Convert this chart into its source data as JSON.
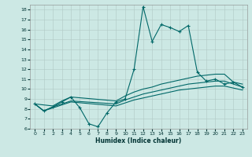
{
  "xlabel": "Humidex (Indice chaleur)",
  "bg_color": "#cce8e4",
  "grid_color": "#b0c8c4",
  "line_color": "#006868",
  "xlim": [
    -0.5,
    23.5
  ],
  "ylim": [
    6,
    18.5
  ],
  "xticks": [
    0,
    1,
    2,
    3,
    4,
    5,
    6,
    7,
    8,
    9,
    10,
    11,
    12,
    13,
    14,
    15,
    16,
    17,
    18,
    19,
    20,
    21,
    22,
    23
  ],
  "yticks": [
    6,
    7,
    8,
    9,
    10,
    11,
    12,
    13,
    14,
    15,
    16,
    17,
    18
  ],
  "line1_x": [
    0,
    1,
    2,
    3,
    4,
    5,
    6,
    7,
    8,
    9,
    10,
    11,
    12,
    13,
    14,
    15,
    16,
    17,
    18,
    19,
    20,
    21,
    22,
    23
  ],
  "line1_y": [
    8.5,
    7.8,
    8.2,
    8.7,
    9.2,
    8.1,
    6.5,
    6.2,
    7.6,
    8.7,
    9.0,
    12.0,
    18.3,
    14.8,
    16.5,
    16.2,
    15.8,
    16.4,
    11.7,
    10.8,
    11.0,
    10.5,
    10.7,
    10.2
  ],
  "line2_x": [
    0,
    2,
    3,
    4,
    9,
    10,
    11,
    12,
    13,
    14,
    15,
    16,
    17,
    18,
    19,
    20,
    21,
    22,
    23
  ],
  "line2_y": [
    8.5,
    8.3,
    8.8,
    9.2,
    8.8,
    9.3,
    9.7,
    10.0,
    10.2,
    10.5,
    10.7,
    10.9,
    11.1,
    11.3,
    11.4,
    11.5,
    11.5,
    10.7,
    10.5
  ],
  "line3_x": [
    0,
    1,
    2,
    3,
    4,
    9,
    10,
    11,
    12,
    13,
    14,
    15,
    16,
    17,
    18,
    19,
    20,
    21,
    22,
    23
  ],
  "line3_y": [
    8.5,
    7.8,
    8.2,
    8.5,
    8.8,
    8.5,
    8.9,
    9.2,
    9.5,
    9.7,
    9.9,
    10.1,
    10.3,
    10.5,
    10.6,
    10.7,
    10.8,
    10.8,
    10.5,
    10.2
  ],
  "line4_x": [
    0,
    1,
    2,
    3,
    4,
    9,
    10,
    11,
    12,
    13,
    14,
    15,
    16,
    17,
    18,
    19,
    20,
    21,
    22,
    23
  ],
  "line4_y": [
    8.5,
    7.8,
    8.1,
    8.4,
    8.7,
    8.3,
    8.6,
    8.9,
    9.1,
    9.3,
    9.5,
    9.7,
    9.9,
    10.0,
    10.1,
    10.2,
    10.3,
    10.3,
    10.1,
    9.9
  ]
}
